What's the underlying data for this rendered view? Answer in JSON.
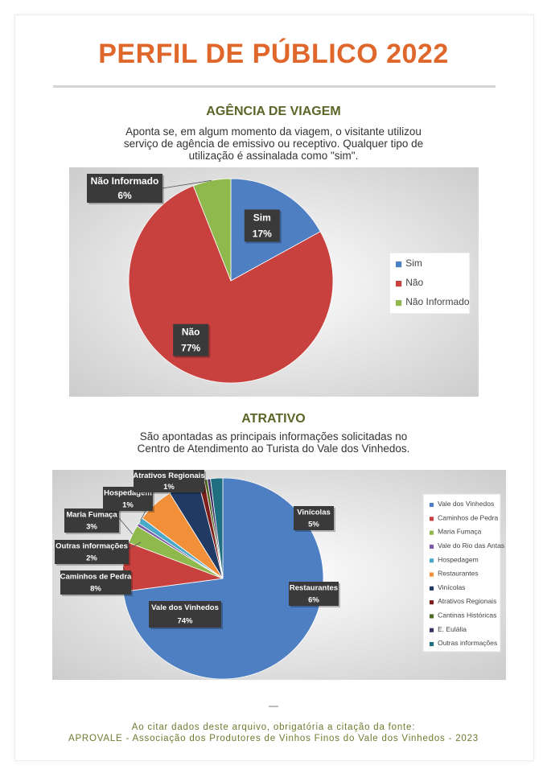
{
  "title": "PERFIL DE PÚBLICO 2022",
  "section1": {
    "heading": "AGÊNCIA DE VIAGEM",
    "description_lines": [
      "Aponta se, em algum momento da viagem, o visitante utilizou",
      "serviço de agência de emissivo ou receptivo. Qualquer tipo de",
      "utilização é assinalada como \"sim\"."
    ]
  },
  "section2": {
    "heading": "ATRATIVO",
    "description_lines": [
      "São apontadas as principais informações solicitadas no",
      "Centro de Atendimento ao Turista do Vale dos Vinhedos."
    ]
  },
  "footer": {
    "line1": "Ao citar dados deste arquivo, obrigatória a citação da fonte:",
    "line2": "APROVALE - Associação dos Produtores de Vinhos Finos do Vale dos Vinhedos - 2023"
  },
  "chart_data": [
    {
      "type": "pie",
      "title": "",
      "categories": [
        "Sim",
        "Não",
        "Não Informado"
      ],
      "values": [
        17,
        77,
        6
      ],
      "value_suffix": "%",
      "colors": [
        "#4f7fc3",
        "#c8413e",
        "#8fb84d"
      ],
      "legend": "right",
      "legend_entries": [
        "Sim",
        "Não",
        "Não Informado"
      ]
    },
    {
      "type": "pie",
      "title": "",
      "categories": [
        "Vale dos Vinhedos",
        "Caminhos de Pedra",
        "Maria Fumaça",
        "Vale do Rio das Antas",
        "Hospedagem",
        "Restaurantes",
        "Vinícolas",
        "Atrativos Regionais",
        "Cantinas Históricas",
        "E. Eulália",
        "Outras informações"
      ],
      "values": [
        74,
        8,
        3,
        0.5,
        1,
        6,
        5,
        1,
        0.5,
        0.5,
        2
      ],
      "value_labels": {
        "Vale dos Vinhedos": "74%",
        "Caminhos de Pedra": "8%",
        "Maria Fumaça": "3%",
        "Hospedagem": "1%",
        "Restaurantes": "6%",
        "Vinícolas": "5%",
        "Atrativos Regionais": "1%",
        "Outras informações": "2%"
      },
      "colors": [
        "#4f7fc3",
        "#c8413e",
        "#8fb84d",
        "#7a5ba8",
        "#4aa9c9",
        "#f2903a",
        "#203a64",
        "#7d1f1d",
        "#4f6a24",
        "#3f2d64",
        "#1f6f80"
      ],
      "legend": "right",
      "legend_entries": [
        "Vale dos Vinhedos",
        "Caminhos de Pedra",
        "Maria Fumaça",
        "Vale do Rio das Antas",
        "Hospedagem",
        "Restaurantes",
        "Vinícolas",
        "Atrativos Regionais",
        "Cantinas Históricas",
        "E. Eulália",
        "Outras informações"
      ]
    }
  ]
}
